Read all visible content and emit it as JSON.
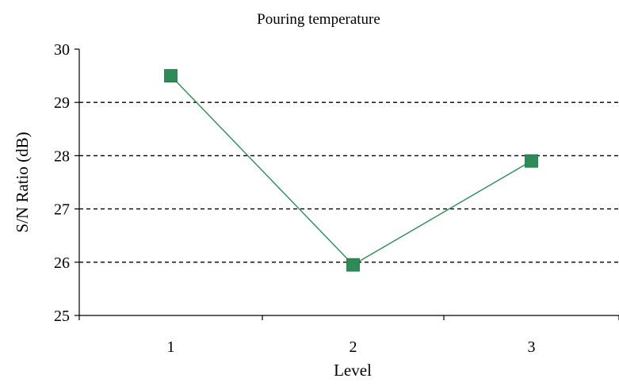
{
  "chart_data": {
    "type": "line",
    "title": "Pouring temperature",
    "xlabel": "Level",
    "ylabel": "S/N Ratio (dB)",
    "categories": [
      "1",
      "2",
      "3"
    ],
    "series": [
      {
        "values": [
          29.5,
          25.95,
          27.9
        ],
        "color": "#2e8b57",
        "marker": "square"
      }
    ],
    "ylim": [
      25,
      30
    ],
    "yticks": [
      "25",
      "26",
      "27",
      "28",
      "29",
      "30"
    ],
    "grid": "horizontal-dashed"
  }
}
